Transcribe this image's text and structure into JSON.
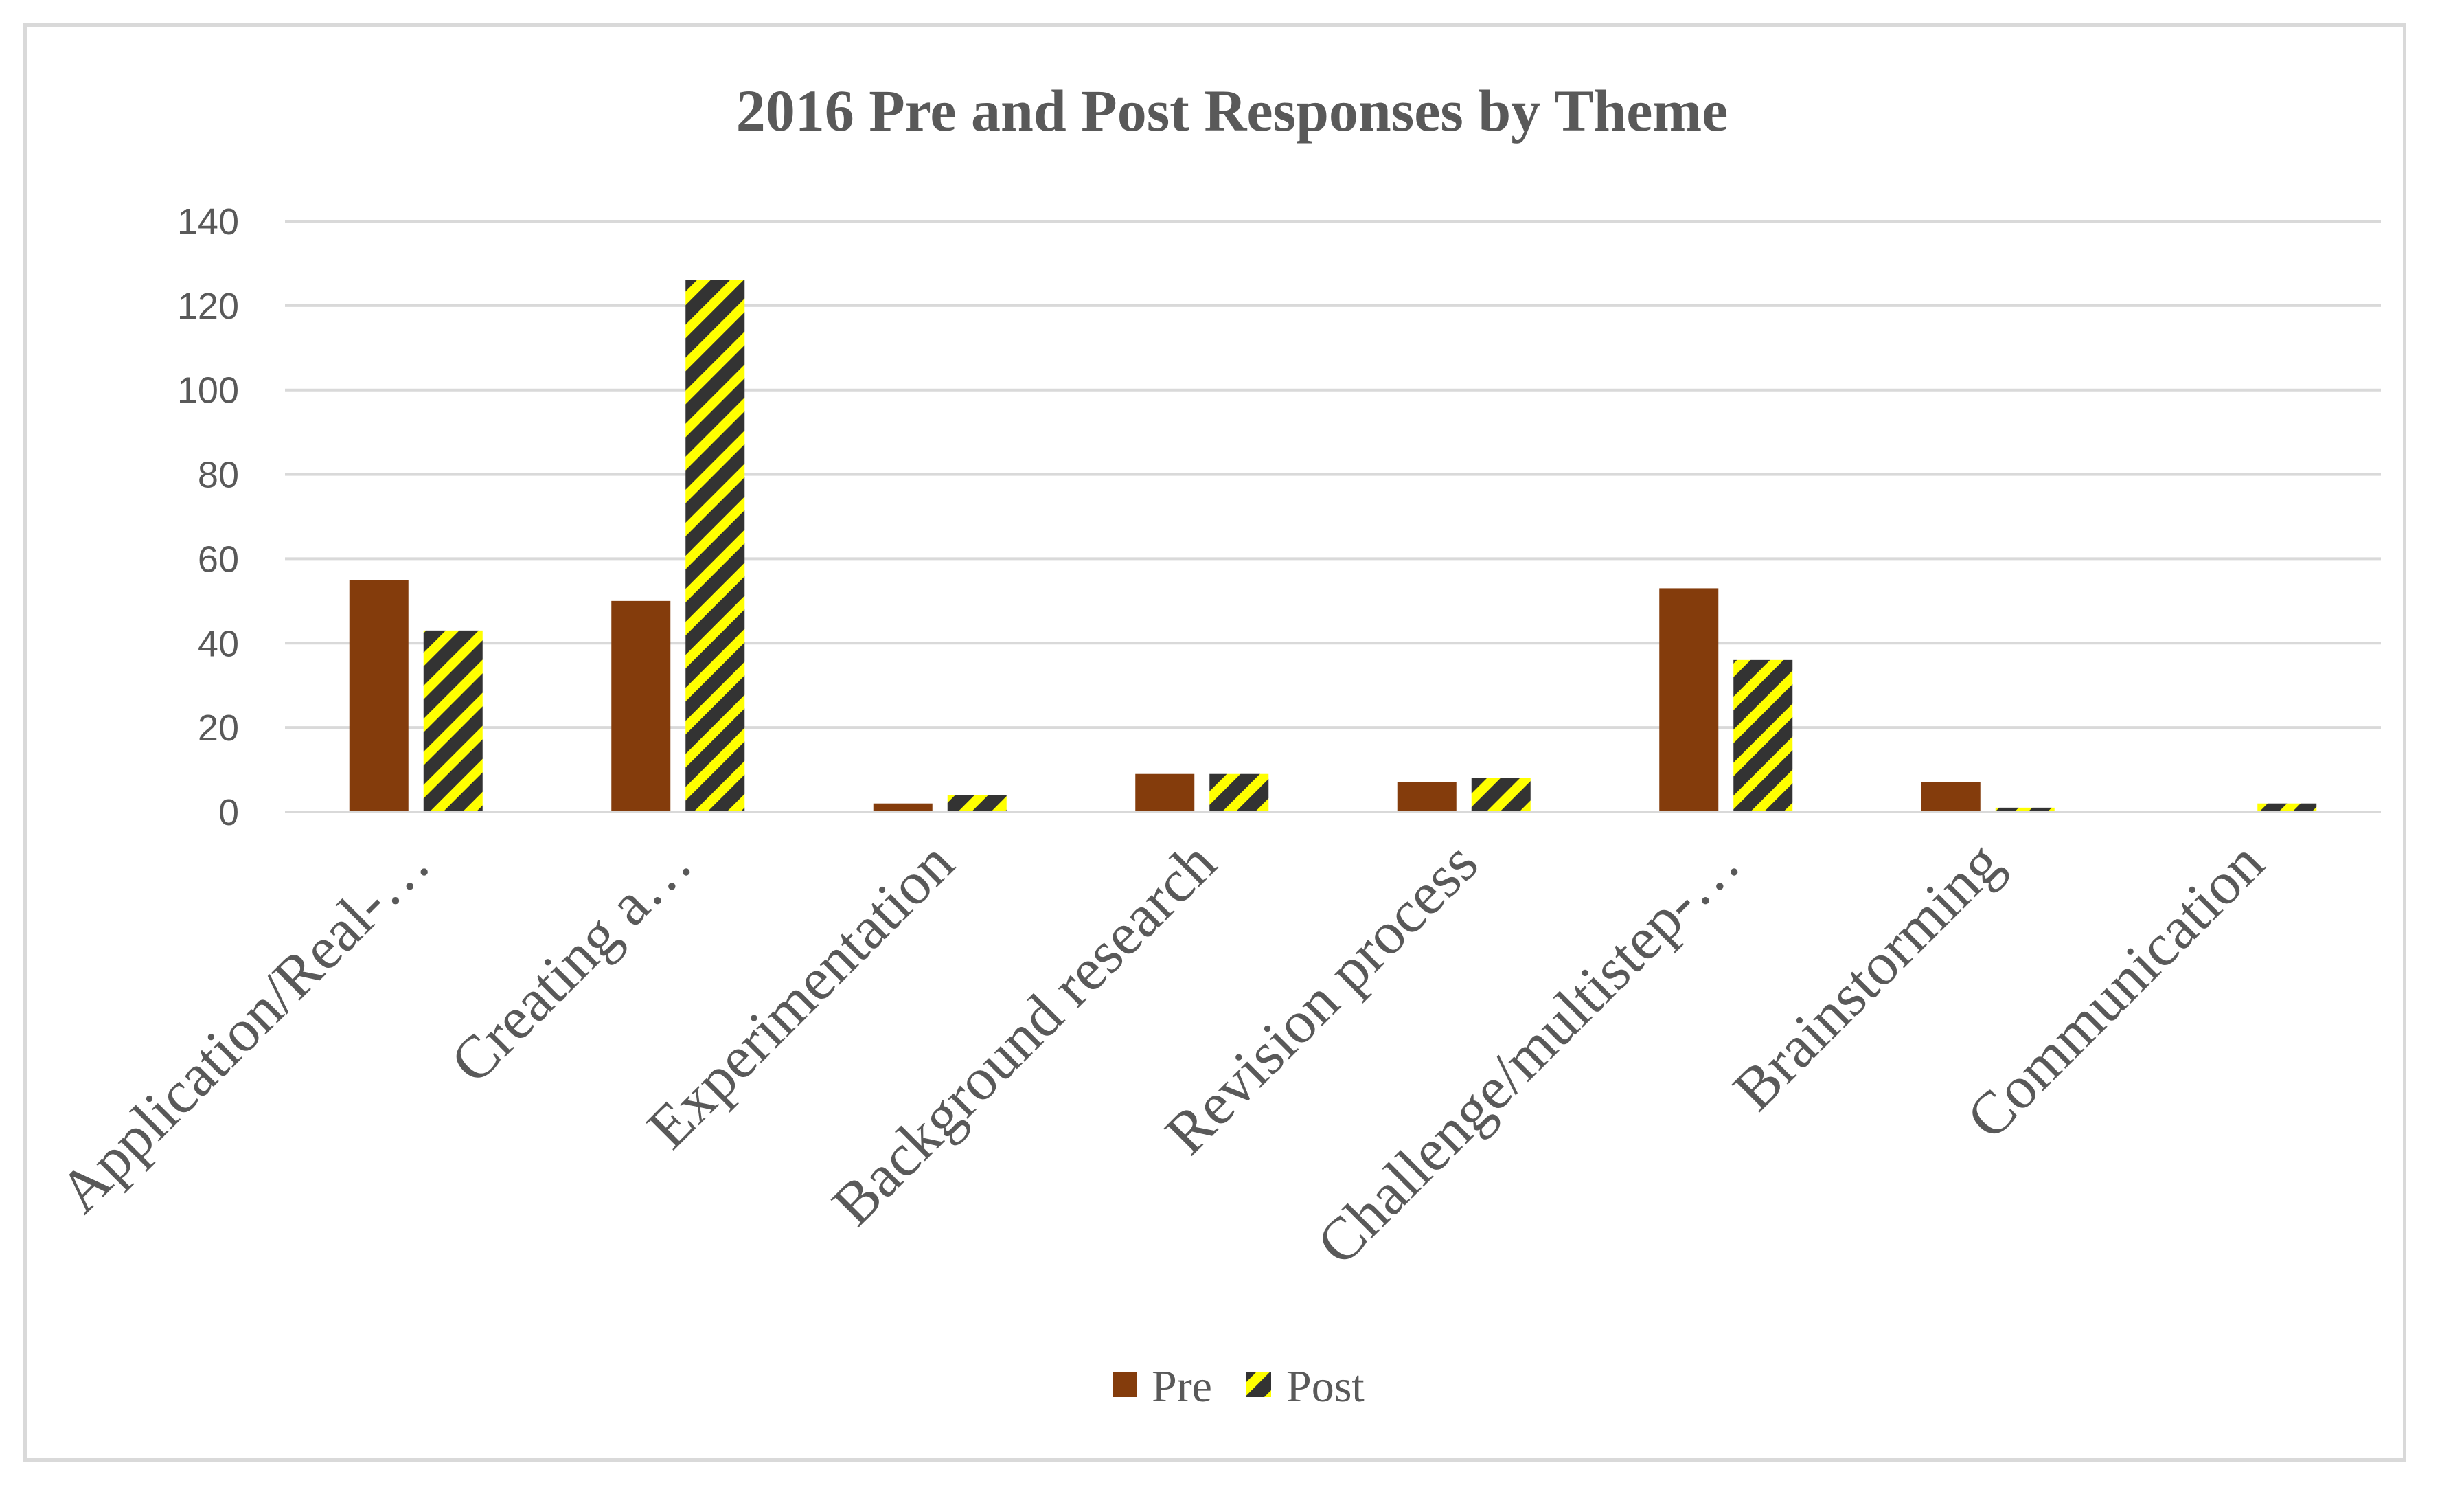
{
  "chart_data": {
    "type": "bar",
    "title": "2016 Pre and Post Responses by Theme",
    "xlabel": "",
    "ylabel": "",
    "categories": [
      "Application/Real-…",
      "Creating a…",
      "Experimentation",
      "Background research",
      "Revision process",
      "Challenge/multistep-…",
      "Brainstorming",
      "Communication"
    ],
    "series": [
      {
        "name": "Pre",
        "color": "#843c0c",
        "pattern": "solid",
        "values": [
          55,
          50,
          2,
          9,
          7,
          53,
          7,
          0
        ]
      },
      {
        "name": "Post",
        "color": "#ffff00",
        "pattern": "diagonal-stripes",
        "values": [
          43,
          126,
          4,
          9,
          8,
          36,
          1,
          2
        ]
      }
    ],
    "ylim": [
      0,
      140
    ],
    "yticks": [
      "0",
      "20",
      "40",
      "60",
      "80",
      "100",
      "120",
      "140"
    ],
    "grid": true,
    "legend_position": "bottom"
  }
}
